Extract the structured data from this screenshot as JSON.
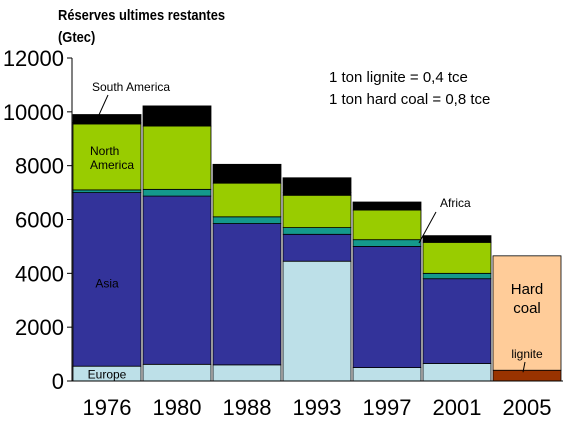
{
  "chart_data": {
    "type": "bar",
    "stacked": true,
    "title_line1": "Réserves ultimes restantes",
    "title_line2": "(Gtec)",
    "ylim": [
      0,
      12000
    ],
    "yticks": [
      "0",
      "2000",
      "4000",
      "6000",
      "8000",
      "10000",
      "12000"
    ],
    "categories": [
      "1976",
      "1980",
      "1988",
      "1993",
      "1997",
      "2001",
      "2005"
    ],
    "series": [
      {
        "name": "Europe",
        "color": "#bde0e8",
        "values": [
          550,
          620,
          600,
          4450,
          500,
          650,
          null
        ]
      },
      {
        "name": "Asia",
        "color": "#33339a",
        "values": [
          6450,
          6250,
          5250,
          1000,
          4500,
          3150,
          null
        ]
      },
      {
        "name": "Africa",
        "color": "#14998c",
        "values": [
          100,
          250,
          250,
          250,
          250,
          200,
          null
        ]
      },
      {
        "name": "North America",
        "color": "#99cc00",
        "values": [
          2450,
          2350,
          1250,
          1200,
          1100,
          1150,
          null
        ]
      },
      {
        "name": "",
        "color": "#000000",
        "values": [
          50,
          0,
          0,
          100,
          0,
          50,
          null
        ]
      },
      {
        "name": "South America",
        "color": "#000000",
        "values": [
          300,
          750,
          700,
          550,
          300,
          200,
          null
        ]
      },
      {
        "name": "lignite",
        "color": "#993300",
        "values": [
          null,
          null,
          null,
          null,
          null,
          null,
          400
        ]
      },
      {
        "name": "Hard coal",
        "color": "#ffcc99",
        "values": [
          null,
          null,
          null,
          null,
          null,
          null,
          4250
        ]
      }
    ],
    "labels": {
      "south_america": "South America",
      "north_america_1": "North",
      "north_america_2": "America",
      "asia": "Asia",
      "europe": "Europe",
      "africa": "Africa",
      "hard_coal_1": "Hard",
      "hard_coal_2": "coal",
      "lignite": "lignite"
    },
    "notes": [
      "1 ton lignite = 0,4 tce",
      "1 ton hard coal   = 0,8   tce"
    ],
    "grid": false,
    "legend": "none"
  }
}
